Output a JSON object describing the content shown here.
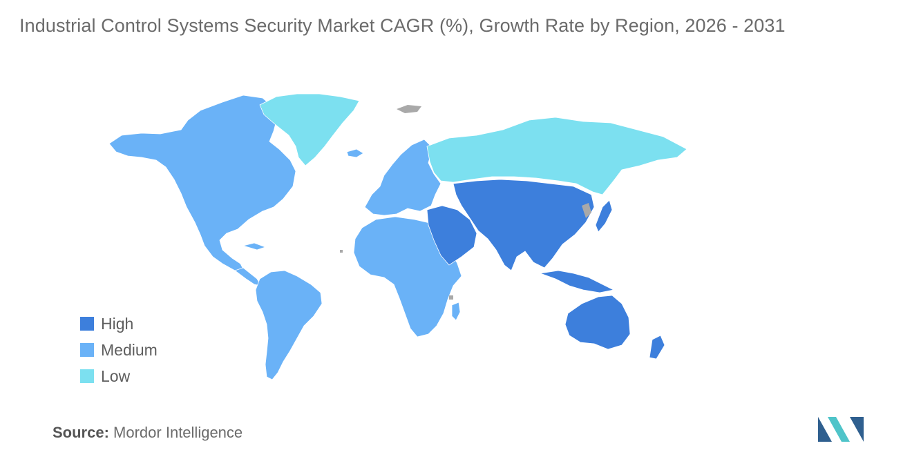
{
  "title": "Industrial Control Systems Security Market CAGR (%), Growth Rate by Region, 2026 - 2031",
  "legend": [
    {
      "label": "High",
      "color": "#3d7fdc"
    },
    {
      "label": "Medium",
      "color": "#6ab2f7"
    },
    {
      "label": "Low",
      "color": "#7ce0f0"
    }
  ],
  "regions": [
    {
      "name": "North America",
      "level": "Medium"
    },
    {
      "name": "South America",
      "level": "Medium"
    },
    {
      "name": "Europe",
      "level": "Medium"
    },
    {
      "name": "Africa",
      "level": "Medium"
    },
    {
      "name": "Greenland",
      "level": "Low"
    },
    {
      "name": "Russia",
      "level": "Low"
    },
    {
      "name": "Asia",
      "level": "High"
    },
    {
      "name": "Middle East",
      "level": "High"
    },
    {
      "name": "Australia & Oceania",
      "level": "High"
    }
  ],
  "colors": {
    "high": "#3d7fdc",
    "medium": "#6ab2f7",
    "low": "#7ce0f0",
    "no_data": "#a9a9a9",
    "logo_dark": "#2f5f8f",
    "logo_light": "#4fc4c9"
  },
  "source": {
    "key": "Source:",
    "value": "Mordor Intelligence"
  },
  "logo_icon": "mordor-intelligence-logo-icon"
}
